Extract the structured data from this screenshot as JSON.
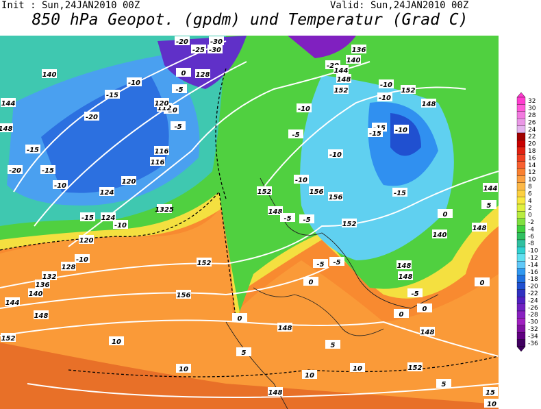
{
  "header": {
    "init": "Init : Sun,24JAN2010 00Z",
    "valid": "Valid: Sun,24JAN2010 00Z",
    "title": "850 hPa Geopot. (gpdm) und Temperatur (Grad C)"
  },
  "colorbar": {
    "labels": [
      32,
      30,
      28,
      26,
      24,
      22,
      20,
      18,
      16,
      14,
      12,
      10,
      8,
      6,
      4,
      2,
      0,
      -2,
      -4,
      -6,
      -8,
      -10,
      -12,
      -14,
      -16,
      -18,
      -20,
      -22,
      -24,
      -26,
      -28,
      -30,
      -32,
      -34,
      -36
    ],
    "colors": [
      "#ff3ccf",
      "#ff5ad8",
      "#f27ae0",
      "#ea98e6",
      "#e4b4ee",
      "#a00000",
      "#c80000",
      "#e02010",
      "#f04020",
      "#f86030",
      "#fa8030",
      "#fca040",
      "#fcb848",
      "#fcd040",
      "#f8e840",
      "#e0f040",
      "#b8ec40",
      "#80e040",
      "#40d040",
      "#30c060",
      "#30c0a0",
      "#30d0d0",
      "#60e0f0",
      "#60c8f8",
      "#3098f0",
      "#2070e0",
      "#2050d0",
      "#3030c0",
      "#5020c0",
      "#7020c0",
      "#8820c0",
      "#a020c0",
      "#8010a0",
      "#600080",
      "#400060"
    ]
  },
  "map_labels": [
    "140",
    "144",
    "148",
    "-15",
    "-20",
    "-15",
    "-10",
    "120",
    "124",
    "-15",
    "124",
    "-10",
    "1325",
    "120",
    "128",
    "132",
    "136",
    "140",
    "144",
    "148",
    "152",
    "-10",
    "152",
    "156",
    "-10",
    "10",
    "10",
    "148",
    "148",
    "5",
    "0",
    "-5",
    "-20",
    "-15",
    "-10",
    "-5",
    "0",
    "112",
    "116",
    "116",
    "120",
    "128",
    "-20",
    "-30",
    "-30",
    "-25",
    "140",
    "136",
    "-20",
    "144",
    "148",
    "152",
    "-10",
    "-10",
    "152",
    "148",
    "-15",
    "-15",
    "-10",
    "-10",
    "156",
    "156",
    "152",
    "-15",
    "-5",
    "-5",
    "152",
    "148",
    "-5",
    "-5",
    "0",
    "-5",
    "-10",
    "-10",
    "148",
    "148",
    "-5",
    "0",
    "0",
    "5",
    "10",
    "10",
    "5",
    "148",
    "152",
    "148",
    "0",
    "140",
    "144",
    "5",
    "0",
    "10",
    "15"
  ]
}
